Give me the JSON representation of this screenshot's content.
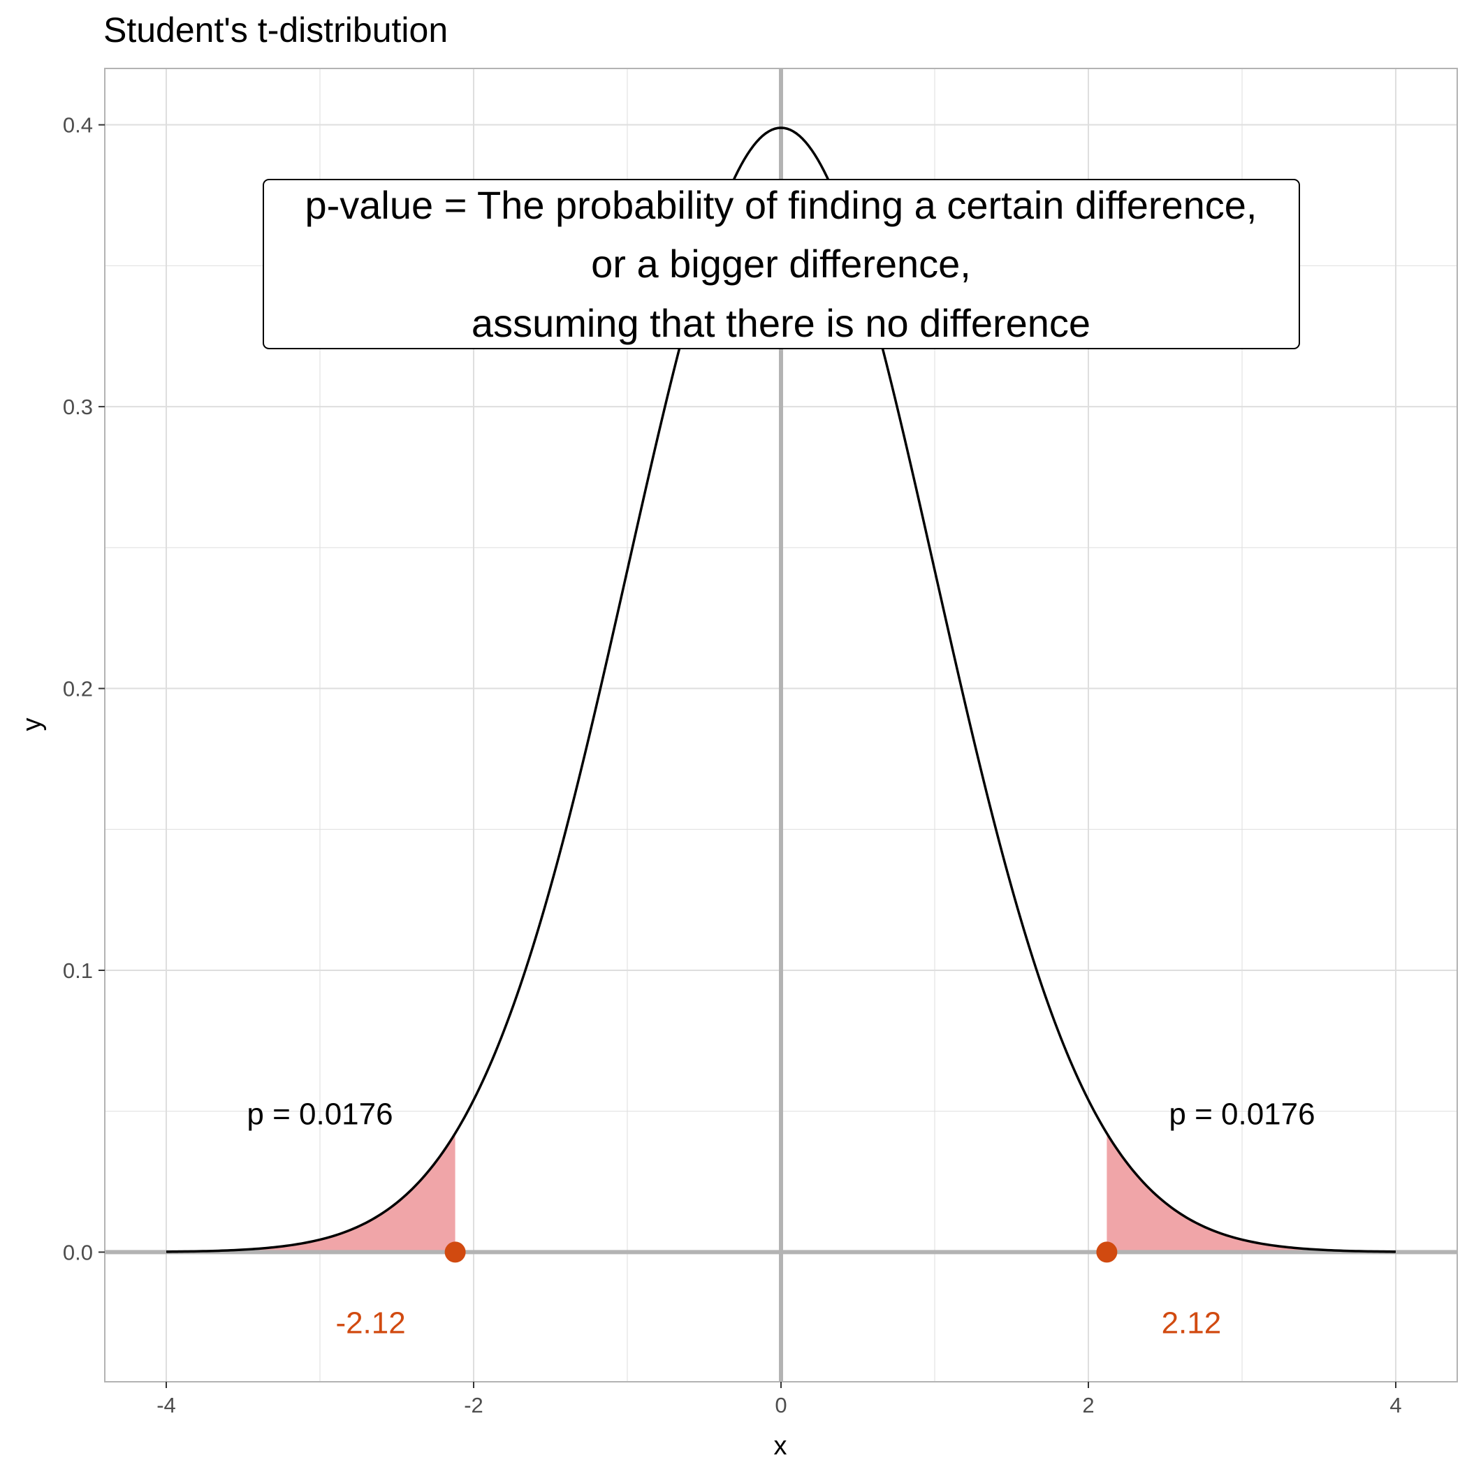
{
  "chart_data": {
    "type": "area",
    "title": "Student's t-distribution",
    "xlabel": "x",
    "ylabel": "y",
    "xlim": [
      -4.4,
      4.4
    ],
    "ylim": [
      -0.046,
      0.42
    ],
    "x_ticks": [
      -4,
      -2,
      0,
      2,
      4
    ],
    "x_tick_labels": [
      "-4",
      "-2",
      "0",
      "2",
      "4"
    ],
    "y_ticks": [
      0.0,
      0.1,
      0.2,
      0.3,
      0.4
    ],
    "y_tick_labels": [
      "0.0",
      "0.1",
      "0.2",
      "0.3",
      "0.4"
    ],
    "grid": true,
    "curve": {
      "x": [
        -4.0,
        -3.75,
        -3.5,
        -3.25,
        -3.0,
        -2.75,
        -2.5,
        -2.25,
        -2.12,
        -2.0,
        -1.75,
        -1.5,
        -1.25,
        -1.0,
        -0.75,
        -0.5,
        -0.25,
        0.0,
        0.25,
        0.5,
        0.75,
        1.0,
        1.25,
        1.5,
        1.75,
        2.0,
        2.12,
        2.25,
        2.5,
        2.75,
        3.0,
        3.25,
        3.5,
        3.75,
        4.0
      ],
      "y": [
        0.0001,
        0.0004,
        0.0009,
        0.002,
        0.0044,
        0.0091,
        0.0175,
        0.0317,
        0.0412,
        0.0539,
        0.0862,
        0.1295,
        0.1826,
        0.242,
        0.3011,
        0.3521,
        0.3867,
        0.3989,
        0.3867,
        0.3521,
        0.3011,
        0.242,
        0.1826,
        0.1295,
        0.0862,
        0.0539,
        0.0412,
        0.0317,
        0.0175,
        0.0091,
        0.0044,
        0.002,
        0.0009,
        0.0004,
        0.0001
      ]
    },
    "shaded_regions": [
      {
        "from": -4.0,
        "to": -2.12
      },
      {
        "from": 2.12,
        "to": 4.0
      }
    ],
    "critical_points": [
      {
        "x": -2.12,
        "y": 0,
        "label": "-2.12"
      },
      {
        "x": 2.12,
        "y": 0,
        "label": "2.12"
      }
    ],
    "tail_annotations": [
      {
        "x": -3.0,
        "y": 0.049,
        "text": "p = 0.0176"
      },
      {
        "x": 3.0,
        "y": 0.049,
        "text": "p = 0.0176"
      }
    ],
    "note_box": {
      "x": 0,
      "lines": [
        "p-value = The probability of finding a certain difference,",
        "or a bigger difference,",
        "assuming that there is no difference"
      ]
    },
    "colors": {
      "curve": "#000000",
      "shade": "#f0a5a8",
      "point": "#d14a10",
      "crit_label": "#d14a10",
      "reference_lines": "#b3b3b3",
      "grid": "#dedede",
      "panel_border": "#b3b3b3"
    }
  }
}
